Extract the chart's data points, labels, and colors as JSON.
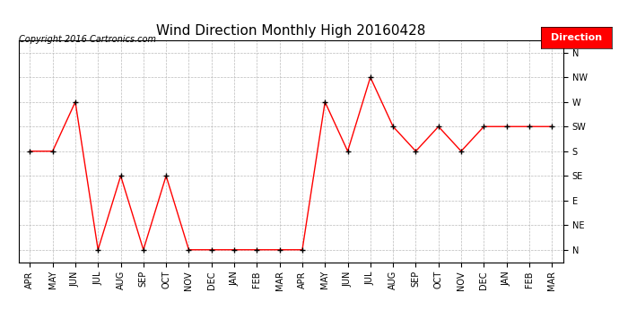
{
  "title": "Wind Direction Monthly High 20160428",
  "copyright": "Copyright 2016 Cartronics.com",
  "legend_label": "Direction",
  "legend_color": "#ff0000",
  "legend_text_color": "#ffffff",
  "x_labels": [
    "APR",
    "MAY",
    "JUN",
    "JUL",
    "AUG",
    "SEP",
    "OCT",
    "NOV",
    "DEC",
    "JAN",
    "FEB",
    "MAR",
    "APR",
    "MAY",
    "JUN",
    "JUL",
    "AUG",
    "SEP",
    "OCT",
    "NOV",
    "DEC",
    "JAN",
    "FEB",
    "MAR"
  ],
  "y_labels": [
    "N",
    "NE",
    "E",
    "SE",
    "S",
    "SW",
    "W",
    "NW",
    "N"
  ],
  "y_values": [
    0,
    1,
    2,
    3,
    4,
    5,
    6,
    7,
    8
  ],
  "direction_values": [
    4,
    4,
    6,
    0,
    3,
    0,
    3,
    0,
    0,
    0,
    0,
    0,
    0,
    6,
    4,
    7,
    5,
    4,
    5,
    4,
    5,
    5,
    5,
    5
  ],
  "line_color": "#ff0000",
  "marker_color": "#000000",
  "bg_color": "#ffffff",
  "grid_color": "#bbbbbb",
  "title_fontsize": 11,
  "copyright_fontsize": 7,
  "tick_fontsize": 7,
  "legend_fontsize": 8
}
